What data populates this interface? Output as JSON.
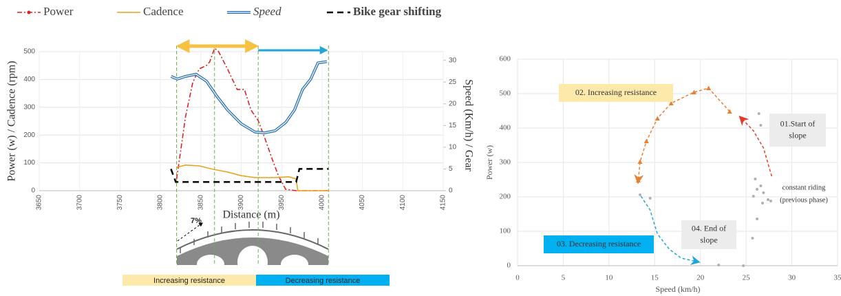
{
  "chart_data": [
    {
      "type": "line",
      "xlabel": "Distance (m)",
      "ylabel": "Power (w)  / Cadence (rpm)",
      "y2label": "Speed (Km/h) / Gear",
      "xlim": [
        3650,
        4150
      ],
      "xticks": [
        3650,
        3700,
        3750,
        3800,
        3850,
        3900,
        3950,
        4000,
        4050,
        4100,
        4150
      ],
      "ylim": [
        0,
        500
      ],
      "yticks": [
        0,
        100,
        200,
        300,
        400,
        500
      ],
      "y2lim": [
        0,
        32
      ],
      "y2ticks": [
        0,
        5,
        10,
        15,
        20,
        25,
        30
      ],
      "grid": true,
      "series": [
        {
          "name": "Power",
          "color": "#e02020",
          "dash": "7,3,2,3",
          "x": [
            3820,
            3825,
            3831,
            3840,
            3848,
            3857,
            3861,
            3867,
            3872,
            3883,
            3891,
            3895,
            3904,
            3912,
            3921,
            3929,
            3938,
            3946,
            3955,
            3968,
            4008
          ],
          "values": [
            42,
            141,
            265,
            389,
            438,
            450,
            463,
            512,
            500,
            438,
            389,
            364,
            364,
            290,
            252,
            191,
            116,
            54,
            5,
            0,
            0
          ]
        },
        {
          "name": "Cadence",
          "color": "#e8a317",
          "x": [
            3820,
            3831,
            3848,
            3865,
            3883,
            3900,
            3917,
            3942,
            3959,
            3968,
            3970,
            4008
          ],
          "values": [
            84,
            92,
            89,
            77,
            67,
            54,
            47,
            47,
            50,
            42,
            0,
            0
          ]
        },
        {
          "name": "Speed",
          "color": "#2e75b6",
          "axis": "y2",
          "double": true,
          "x": [
            3813,
            3821,
            3831,
            3844,
            3857,
            3870,
            3883,
            3900,
            3917,
            3929,
            3942,
            3955,
            3966,
            3976,
            3986,
            3995,
            4006
          ],
          "values": [
            26.3,
            25.7,
            26.3,
            26.8,
            25.2,
            21.7,
            18.6,
            15.4,
            13.5,
            13.3,
            13.8,
            15.7,
            18.6,
            23.3,
            25.7,
            29.4,
            29.7
          ]
        },
        {
          "name": "Bike gear shifting",
          "color": "#000000",
          "axis": "y2",
          "dash": "9,6",
          "x": [
            3813,
            3819,
            3968,
            3972,
            4008
          ],
          "values": [
            5,
            2,
            2,
            5,
            5
          ]
        }
      ],
      "phase_bounds": [
        3820,
        3867,
        3921,
        4008
      ],
      "annotations": {
        "slope": "7%",
        "increasing": "Increasing resistance",
        "decreasing": "Decreasing resistance"
      }
    },
    {
      "type": "scatter",
      "xlabel": "Speed (km/h)",
      "ylabel": "Power (w)",
      "xlim": [
        0,
        35
      ],
      "xticks": [
        0,
        5,
        10,
        15,
        20,
        25,
        30,
        35
      ],
      "ylim": [
        0,
        600
      ],
      "yticks": [
        0,
        100,
        200,
        300,
        400,
        500,
        600
      ],
      "grid": true,
      "series": [
        {
          "color": "#b0b0b0",
          "marker": "dot",
          "x": [
            26.4,
            26.6,
            26,
            26.6,
            26.2,
            26.9,
            25.8,
            27.4,
            26.8,
            27.7,
            26.2,
            25.7,
            22,
            24.7,
            13.4,
            14.5
          ],
          "values": [
            442,
            408,
            252,
            232,
            222,
            212,
            202,
            192,
            182,
            188,
            136,
            80,
            2,
            0,
            206,
            196
          ]
        },
        {
          "color": "#e8382a",
          "line": true,
          "x": [
            27.8,
            26.9,
            25.8,
            24.5
          ],
          "values": [
            260,
            342,
            392,
            428
          ]
        },
        {
          "color": "#ed7d31",
          "line": true,
          "marker": "triangle",
          "x": [
            23.2,
            20.9,
            19.3,
            16.8,
            15.3,
            14.1,
            13.4,
            13.2
          ],
          "values": [
            448,
            516,
            504,
            472,
            428,
            362,
            302,
            248
          ]
        },
        {
          "color": "#1fa6d6",
          "line": true,
          "x": [
            13.5,
            14.5,
            15.3,
            16.6,
            17.9,
            19.6
          ],
          "values": [
            202,
            162,
            92,
            48,
            22,
            12
          ]
        }
      ],
      "annotations": [
        [
          "02. Increasing resistance"
        ],
        [
          "01.Start of",
          "slope"
        ],
        [
          "constant riding",
          "(previous phase)"
        ],
        [
          "04. End of",
          "slope"
        ],
        [
          "03. Decreasing resistance"
        ]
      ]
    }
  ]
}
